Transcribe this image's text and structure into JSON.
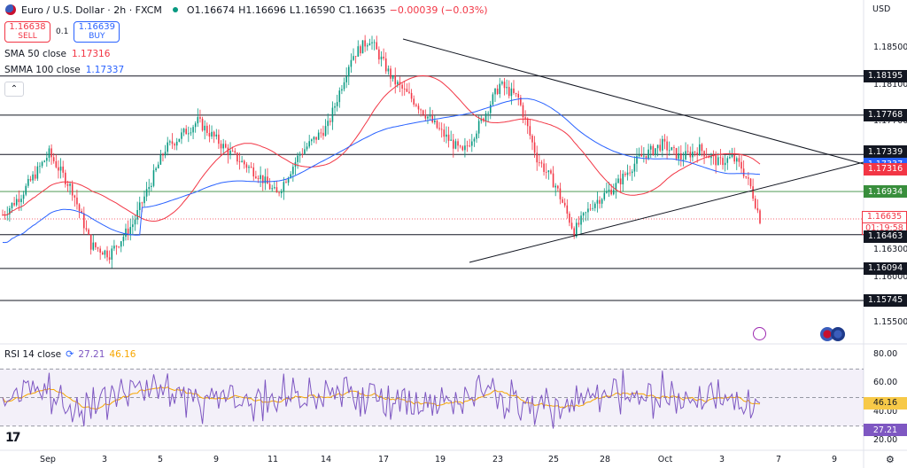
{
  "header": {
    "title": "Euro / U.S. Dollar · 2h · FXCM",
    "open": "O1.16674",
    "high": "H1.16696",
    "low": "L1.16590",
    "close": "C1.16635",
    "change": "−0.00039 (−0.03%)"
  },
  "trade": {
    "sell_price": "1.16638",
    "sell_label": "SELL",
    "quantity": "0.1",
    "buy_price": "1.16639",
    "buy_label": "BUY"
  },
  "indicators": {
    "sma_label": "SMA 50 close",
    "sma_value": "1.17316",
    "smma_label": "SMMA 100 close",
    "smma_value": "1.17337",
    "collapse_icon": "chevron-up-icon"
  },
  "rsi_legend": {
    "label": "RSI 14 close",
    "value1": "27.21",
    "value2": "46.16"
  },
  "axis": {
    "currency": "USD",
    "price_ticks": [
      "1.18500",
      "1.18100",
      "1.17700",
      "1.16300",
      "1.16000",
      "1.15500"
    ],
    "rsi_ticks": [
      "80.00",
      "60.00",
      "40.00",
      "20.00"
    ],
    "x_ticks": [
      "Sep",
      "3",
      "5",
      "9",
      "11",
      "14",
      "17",
      "19",
      "23",
      "25",
      "28",
      "Oct",
      "3",
      "7",
      "9"
    ]
  },
  "levels": [
    {
      "label": "1.18195",
      "color": "#131722"
    },
    {
      "label": "1.17768",
      "color": "#131722"
    },
    {
      "label": "1.17339",
      "color": "#131722"
    },
    {
      "label": "1.17337",
      "color": "#2962ff"
    },
    {
      "label": "1.17316",
      "color": "#f23645"
    },
    {
      "label": "1.16934",
      "color": "#388e3c"
    },
    {
      "label": "1.16635",
      "color": "#f23645"
    },
    {
      "label": "01:19:58",
      "color": "#f23645"
    },
    {
      "label": "1.16463",
      "color": "#131722"
    },
    {
      "label": "1.16094",
      "color": "#131722"
    },
    {
      "label": "1.15745",
      "color": "#131722"
    }
  ],
  "rsi_boxes": [
    {
      "label": "46.16",
      "color": "#f7c948"
    },
    {
      "label": "27.21",
      "color": "#7e57c2"
    }
  ],
  "chart_data": {
    "type": "candlestick",
    "ylim": [
      1.153,
      1.1885
    ],
    "horizontal_lines": [
      1.18195,
      1.17768,
      1.17339,
      1.16934,
      1.16463,
      1.16094,
      1.15745
    ],
    "current_price": 1.16635,
    "ohlc": [],
    "sma50": [],
    "smma100": [],
    "rsi": [],
    "rsi_ma": [],
    "rsi_levels": [
      70,
      50,
      30
    ],
    "rsi_ylim": [
      15,
      85
    ]
  },
  "colors": {
    "up": "#089981",
    "down": "#f23645",
    "sma": "#f23645",
    "smma": "#2962ff",
    "rsi": "#7e57c2",
    "rsi_ma": "#f7a600",
    "support": "#388e3c"
  }
}
